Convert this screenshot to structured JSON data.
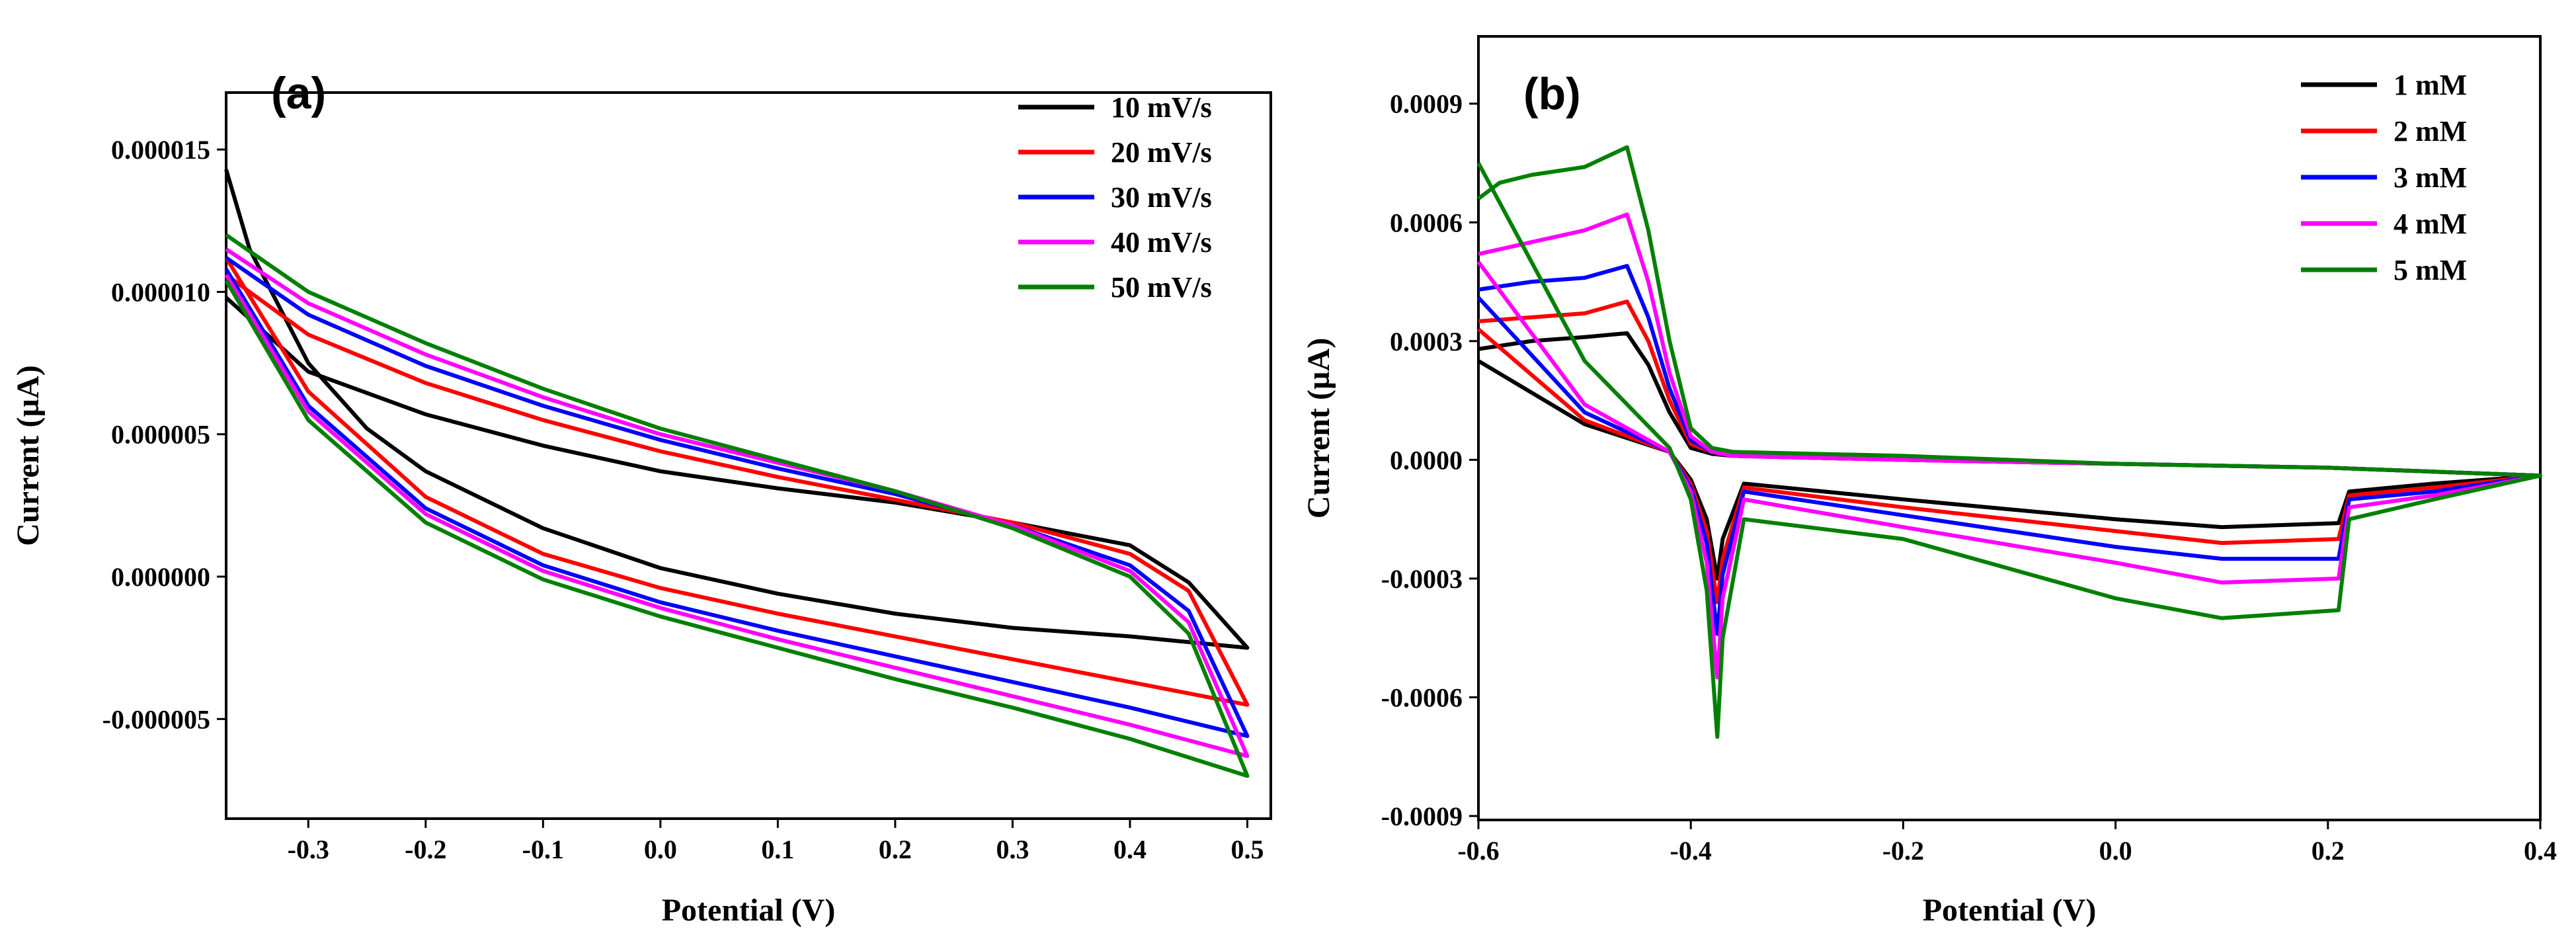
{
  "chart_data": [
    {
      "type": "line",
      "panel_label": "(a)",
      "xlabel": "Potential (V)",
      "ylabel": "Current (µA)",
      "xlim": [
        -0.37,
        0.52
      ],
      "ylim": [
        -8.5e-06,
        1.7e-05
      ],
      "x_ticks": [
        -0.3,
        -0.2,
        -0.1,
        0.0,
        0.1,
        0.2,
        0.3,
        0.4,
        0.5
      ],
      "x_tick_labels": [
        "-0.3",
        "-0.2",
        "-0.1",
        "0.0",
        "0.1",
        "0.2",
        "0.3",
        "0.4",
        "0.5"
      ],
      "y_ticks": [
        1.5e-05,
        1e-05,
        5e-06,
        0.0,
        -5e-06
      ],
      "y_tick_labels": [
        "0.000015",
        "0.000010",
        "0.000005",
        "0.000000",
        "-0.000005"
      ],
      "legend_position": "top-right",
      "series": [
        {
          "name": "10 mV/s",
          "color": "#000000",
          "x_fwd": [
            -0.37,
            -0.35,
            -0.3,
            -0.25,
            -0.2,
            -0.1,
            0.0,
            0.1,
            0.2,
            0.3,
            0.4,
            0.45,
            0.5
          ],
          "y_fwd": [
            1.43e-05,
            1.15e-05,
            7.5e-06,
            5.2e-06,
            3.7e-06,
            1.7e-06,
            3e-07,
            -6e-07,
            -1.3e-06,
            -1.8e-06,
            -2.1e-06,
            -2.3e-06,
            -2.5e-06
          ],
          "x_rev": [
            0.5,
            0.45,
            0.4,
            0.3,
            0.2,
            0.1,
            0.0,
            -0.1,
            -0.2,
            -0.3,
            -0.37
          ],
          "y_rev": [
            -2.5e-06,
            -2e-07,
            1.1e-06,
            1.9e-06,
            2.6e-06,
            3.1e-06,
            3.7e-06,
            4.6e-06,
            5.7e-06,
            7.2e-06,
            9.8e-06
          ]
        },
        {
          "name": "20 mV/s",
          "color": "#ff0000",
          "x_fwd": [
            -0.37,
            -0.3,
            -0.2,
            -0.1,
            0.0,
            0.1,
            0.2,
            0.3,
            0.4,
            0.5
          ],
          "y_fwd": [
            1.12e-05,
            6.5e-06,
            2.8e-06,
            8e-07,
            -4e-07,
            -1.3e-06,
            -2.1e-06,
            -2.9e-06,
            -3.7e-06,
            -4.5e-06
          ],
          "x_rev": [
            0.5,
            0.45,
            0.4,
            0.3,
            0.2,
            0.1,
            0.0,
            -0.1,
            -0.2,
            -0.3,
            -0.37
          ],
          "y_rev": [
            -4.5e-06,
            -5e-07,
            8e-07,
            1.9e-06,
            2.7e-06,
            3.5e-06,
            4.4e-06,
            5.5e-06,
            6.8e-06,
            8.5e-06,
            1.06e-05
          ]
        },
        {
          "name": "30 mV/s",
          "color": "#0000ff",
          "x_fwd": [
            -0.37,
            -0.3,
            -0.2,
            -0.1,
            0.0,
            0.1,
            0.2,
            0.3,
            0.4,
            0.5
          ],
          "y_fwd": [
            1.08e-05,
            6e-06,
            2.4e-06,
            4e-07,
            -9e-07,
            -1.9e-06,
            -2.8e-06,
            -3.7e-06,
            -4.6e-06,
            -5.6e-06
          ],
          "x_rev": [
            0.5,
            0.45,
            0.4,
            0.3,
            0.2,
            0.1,
            0.0,
            -0.1,
            -0.2,
            -0.3,
            -0.37
          ],
          "y_rev": [
            -5.6e-06,
            -1.2e-06,
            4e-07,
            1.8e-06,
            2.9e-06,
            3.8e-06,
            4.8e-06,
            6e-06,
            7.4e-06,
            9.2e-06,
            1.12e-05
          ]
        },
        {
          "name": "40 mV/s",
          "color": "#ff00ff",
          "x_fwd": [
            -0.37,
            -0.3,
            -0.2,
            -0.1,
            0.0,
            0.1,
            0.2,
            0.3,
            0.4,
            0.5
          ],
          "y_fwd": [
            1.06e-05,
            5.8e-06,
            2.2e-06,
            2e-07,
            -1.1e-06,
            -2.2e-06,
            -3.2e-06,
            -4.2e-06,
            -5.2e-06,
            -6.3e-06
          ],
          "x_rev": [
            0.5,
            0.45,
            0.4,
            0.3,
            0.2,
            0.1,
            0.0,
            -0.1,
            -0.2,
            -0.3,
            -0.37
          ],
          "y_rev": [
            -6.3e-06,
            -1.6e-06,
            2e-07,
            1.8e-06,
            3e-06,
            4e-06,
            5e-06,
            6.3e-06,
            7.8e-06,
            9.6e-06,
            1.15e-05
          ]
        },
        {
          "name": "50 mV/s",
          "color": "#008000",
          "x_fwd": [
            -0.37,
            -0.3,
            -0.2,
            -0.1,
            0.0,
            0.1,
            0.2,
            0.3,
            0.4,
            0.5
          ],
          "y_fwd": [
            1.04e-05,
            5.5e-06,
            1.9e-06,
            -1e-07,
            -1.4e-06,
            -2.5e-06,
            -3.6e-06,
            -4.6e-06,
            -5.7e-06,
            -7e-06
          ],
          "x_rev": [
            0.5,
            0.45,
            0.4,
            0.3,
            0.2,
            0.1,
            0.0,
            -0.1,
            -0.2,
            -0.3,
            -0.37
          ],
          "y_rev": [
            -7e-06,
            -2e-06,
            0.0,
            1.7e-06,
            3e-06,
            4.1e-06,
            5.2e-06,
            6.6e-06,
            8.2e-06,
            1e-05,
            1.2e-05
          ]
        }
      ]
    },
    {
      "type": "line",
      "panel_label": "(b)",
      "xlabel": "Potential (V)",
      "ylabel": "Current (µA)",
      "xlim": [
        -0.6,
        0.4
      ],
      "ylim": [
        -0.00091,
        0.00107
      ],
      "x_ticks": [
        -0.6,
        -0.4,
        -0.2,
        0.0,
        0.2,
        0.4
      ],
      "x_tick_labels": [
        "-0.6",
        "-0.4",
        "-0.2",
        "0.0",
        "0.2",
        "0.4"
      ],
      "y_ticks": [
        0.0009,
        0.0006,
        0.0003,
        0.0,
        -0.0003,
        -0.0006,
        -0.0009
      ],
      "y_tick_labels": [
        "0.0009",
        "0.0006",
        "0.0003",
        "0.0000",
        "-0.0003",
        "-0.0006",
        "-0.0009"
      ],
      "legend_position": "top-right",
      "series": [
        {
          "name": "1 mM",
          "color": "#000000",
          "x": [
            -0.6,
            -0.55,
            -0.5,
            -0.46,
            -0.44,
            -0.42,
            -0.4,
            -0.38,
            -0.36,
            -0.2,
            0.0,
            0.2,
            0.3,
            0.4,
            0.3,
            0.22,
            0.21,
            0.1,
            0.0,
            -0.2,
            -0.35,
            -0.37,
            -0.375,
            -0.385,
            -0.4,
            -0.42,
            -0.5,
            -0.6
          ],
          "y": [
            0.00028,
            0.0003,
            0.00031,
            0.00032,
            0.00024,
            0.00012,
            3e-05,
            1.5e-05,
            1e-05,
            0.0,
            -1e-05,
            -2e-05,
            -3e-05,
            -4e-05,
            -6e-05,
            -8e-05,
            -0.00016,
            -0.00017,
            -0.00015,
            -0.0001,
            -6e-05,
            -0.0002,
            -0.0003,
            -0.00015,
            -5e-05,
            2e-05,
            9e-05,
            0.00025
          ]
        },
        {
          "name": "2 mM",
          "color": "#ff0000",
          "x": [
            -0.6,
            -0.55,
            -0.5,
            -0.46,
            -0.44,
            -0.42,
            -0.4,
            -0.38,
            -0.36,
            -0.2,
            0.0,
            0.2,
            0.3,
            0.4,
            0.3,
            0.22,
            0.21,
            0.1,
            0.0,
            -0.2,
            -0.35,
            -0.37,
            -0.375,
            -0.385,
            -0.4,
            -0.42,
            -0.5,
            -0.6
          ],
          "y": [
            0.00035,
            0.00036,
            0.00037,
            0.0004,
            0.0003,
            0.00015,
            4e-05,
            2e-05,
            1e-05,
            0.0,
            -1e-05,
            -2e-05,
            -3e-05,
            -4e-05,
            -7e-05,
            -9e-05,
            -0.0002,
            -0.00021,
            -0.00018,
            -0.00012,
            -7e-05,
            -0.00025,
            -0.00036,
            -0.00018,
            -6e-05,
            2e-05,
            0.0001,
            0.00033
          ]
        },
        {
          "name": "3 mM",
          "color": "#0000ff",
          "x": [
            -0.6,
            -0.55,
            -0.5,
            -0.46,
            -0.44,
            -0.42,
            -0.4,
            -0.38,
            -0.36,
            -0.2,
            0.0,
            0.2,
            0.3,
            0.4,
            0.3,
            0.22,
            0.21,
            0.1,
            0.0,
            -0.2,
            -0.35,
            -0.37,
            -0.375,
            -0.385,
            -0.4,
            -0.42,
            -0.5,
            -0.6
          ],
          "y": [
            0.00043,
            0.00045,
            0.00046,
            0.00049,
            0.00036,
            0.00018,
            5e-05,
            2e-05,
            1e-05,
            0.0,
            -1e-05,
            -2e-05,
            -3e-05,
            -4e-05,
            -8e-05,
            -0.0001,
            -0.00025,
            -0.00025,
            -0.00022,
            -0.00014,
            -8e-05,
            -0.00029,
            -0.00044,
            -0.00021,
            -7e-05,
            2e-05,
            0.00012,
            0.00041
          ]
        },
        {
          "name": "4 mM",
          "color": "#ff00ff",
          "x": [
            -0.6,
            -0.55,
            -0.5,
            -0.46,
            -0.44,
            -0.42,
            -0.4,
            -0.38,
            -0.36,
            -0.2,
            0.0,
            0.2,
            0.3,
            0.4,
            0.3,
            0.22,
            0.21,
            0.1,
            0.0,
            -0.2,
            -0.35,
            -0.37,
            -0.375,
            -0.385,
            -0.4,
            -0.42,
            -0.5,
            -0.6
          ],
          "y": [
            0.00052,
            0.00055,
            0.00058,
            0.00062,
            0.00045,
            0.00022,
            6e-05,
            2e-05,
            1e-05,
            0.0,
            -1e-05,
            -2e-05,
            -3e-05,
            -4e-05,
            -9e-05,
            -0.00012,
            -0.0003,
            -0.00031,
            -0.00026,
            -0.00017,
            -0.0001,
            -0.00035,
            -0.00055,
            -0.00026,
            -8e-05,
            2e-05,
            0.00014,
            0.0005
          ]
        },
        {
          "name": "5 mM",
          "color": "#008000",
          "x": [
            -0.6,
            -0.58,
            -0.55,
            -0.5,
            -0.46,
            -0.44,
            -0.42,
            -0.4,
            -0.38,
            -0.36,
            -0.2,
            0.0,
            0.2,
            0.3,
            0.4,
            0.3,
            0.22,
            0.21,
            0.1,
            0.0,
            -0.2,
            -0.35,
            -0.37,
            -0.375,
            -0.385,
            -0.4,
            -0.42,
            -0.5,
            -0.6
          ],
          "y": [
            0.00066,
            0.0007,
            0.00072,
            0.00074,
            0.00079,
            0.00058,
            0.0003,
            8e-05,
            3e-05,
            2e-05,
            1e-05,
            -1e-05,
            -2e-05,
            -3e-05,
            -4e-05,
            -0.0001,
            -0.00015,
            -0.00038,
            -0.0004,
            -0.00035,
            -0.0002,
            -0.00015,
            -0.00045,
            -0.0007,
            -0.00033,
            -0.0001,
            3e-05,
            0.00025,
            0.00075
          ]
        }
      ]
    }
  ]
}
